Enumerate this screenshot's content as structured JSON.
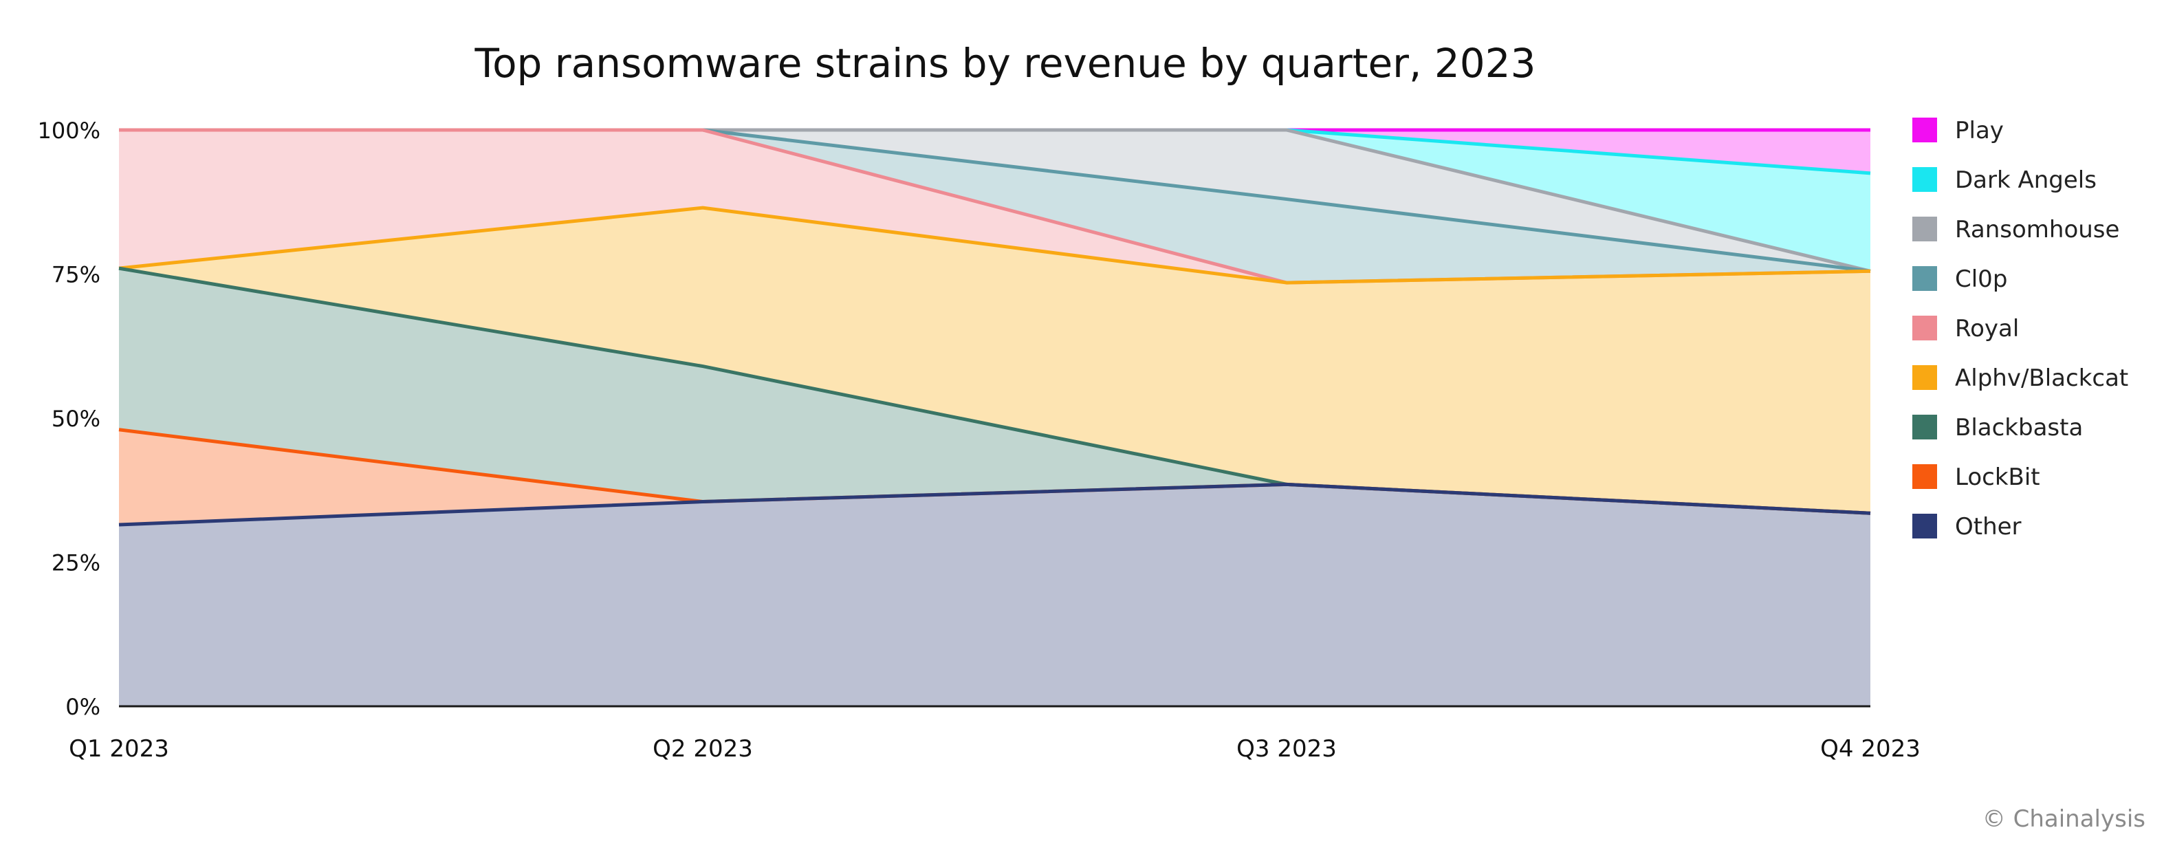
{
  "chart_data": {
    "type": "area",
    "stacked": true,
    "normalized": true,
    "title": "Top ransomware strains by revenue by quarter, 2023",
    "xlabel": "",
    "ylabel": "",
    "categories": [
      "Q1 2023",
      "Q2 2023",
      "Q3 2023",
      "Q4 2023"
    ],
    "ylim": [
      0,
      100
    ],
    "yticks": [
      {
        "value": 0,
        "label": "0%"
      },
      {
        "value": 25,
        "label": "25%"
      },
      {
        "value": 50,
        "label": "50%"
      },
      {
        "value": 75,
        "label": "75%"
      },
      {
        "value": 100,
        "label": "100%"
      }
    ],
    "grid": true,
    "legend_position": "right",
    "series": [
      {
        "name": "Other",
        "values": [
          31.5,
          35.5,
          38.5,
          33.5
        ],
        "line_color": "#2b3a75",
        "fill_color": "#bcc1d3"
      },
      {
        "name": "LockBit",
        "values": [
          16.5,
          0.0,
          0.0,
          0.0
        ],
        "line_color": "#f75a0e",
        "fill_color": "#fdc7ae"
      },
      {
        "name": "Blackbasta",
        "values": [
          28.0,
          23.5,
          0.0,
          0.0
        ],
        "line_color": "#3a7565",
        "fill_color": "#c1d6d0"
      },
      {
        "name": "Alphv/Blackcat",
        "values": [
          0.0,
          27.5,
          35.0,
          42.0
        ],
        "line_color": "#f9a813",
        "fill_color": "#fde4b2"
      },
      {
        "name": "Royal",
        "values": [
          24.0,
          13.5,
          0.0,
          0.0
        ],
        "line_color": "#ee8a92",
        "fill_color": "#fad8db"
      },
      {
        "name": "Cl0p",
        "values": [
          0.0,
          0.0,
          14.5,
          0.0
        ],
        "line_color": "#5e9aa6",
        "fill_color": "#cde1e4"
      },
      {
        "name": "Ransomhouse",
        "values": [
          0.0,
          0.0,
          12.0,
          0.0
        ],
        "line_color": "#a2a6ad",
        "fill_color": "#e2e5e8"
      },
      {
        "name": "Dark Angels",
        "values": [
          0.0,
          0.0,
          0.0,
          17.0
        ],
        "line_color": "#1ae6f0",
        "fill_color": "#adfcfd"
      },
      {
        "name": "Play",
        "values": [
          0.0,
          0.0,
          0.0,
          7.5
        ],
        "line_color": "#f20ef2",
        "fill_color": "#fdb0fb"
      }
    ],
    "legend_order": [
      "Play",
      "Dark Angels",
      "Ransomhouse",
      "Cl0p",
      "Royal",
      "Alphv/Blackcat",
      "Blackbasta",
      "LockBit",
      "Other"
    ],
    "gridline_color": "#c9c9c9",
    "axis_color": "#1a1a1a"
  },
  "credit": "© Chainalysis"
}
